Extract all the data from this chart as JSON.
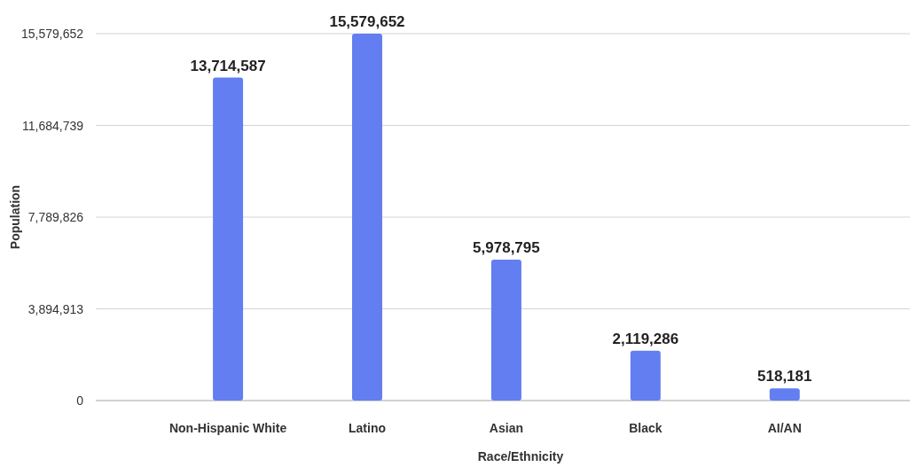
{
  "chart_data": {
    "type": "bar",
    "xlabel": "Race/Ethnicity",
    "ylabel": "Population",
    "categories": [
      "Non-Hispanic White",
      "Latino",
      "Asian",
      "Black",
      "AI/AN"
    ],
    "values": [
      13714587,
      15579652,
      5978795,
      2119286,
      518181
    ],
    "value_labels": [
      "13,714,587",
      "15,579,652",
      "5,978,795",
      "2,119,286",
      "518,181"
    ],
    "color": "#637ef0",
    "ylim": [
      0,
      15579652
    ],
    "yticks": [
      {
        "value": 0,
        "label": "0"
      },
      {
        "value": 3894913,
        "label": "3,894,913"
      },
      {
        "value": 7789826,
        "label": "7,789,826"
      },
      {
        "value": 11684739,
        "label": "11,684,739"
      },
      {
        "value": 15579652,
        "label": "15,579,652"
      }
    ],
    "grid": "y"
  }
}
